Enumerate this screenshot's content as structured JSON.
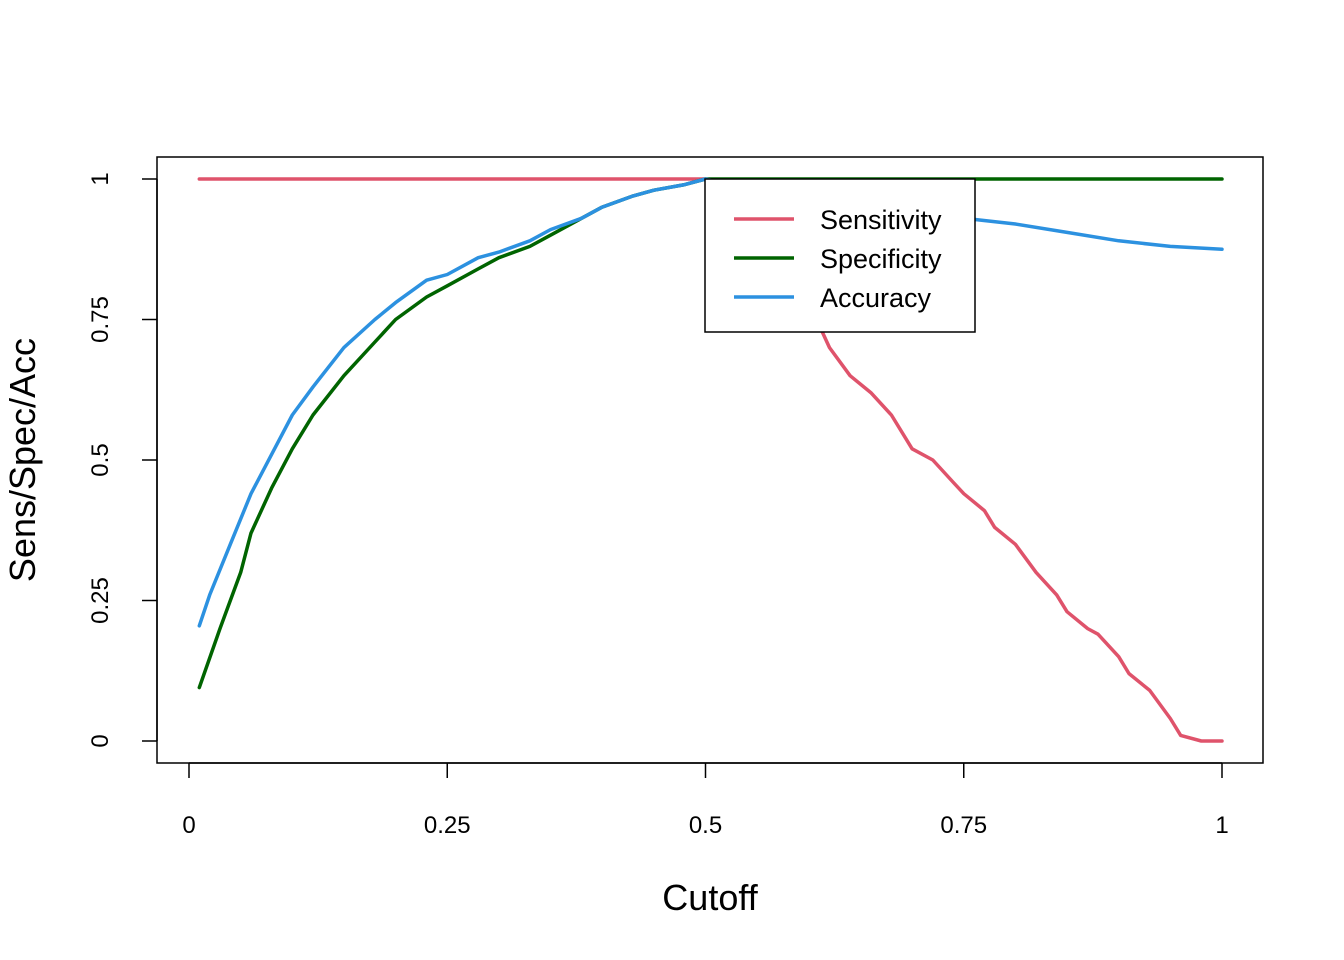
{
  "chart_data": {
    "type": "line",
    "title": "",
    "xlabel": "Cutoff",
    "ylabel": "Sens/Spec/Acc",
    "xlim": [
      0,
      1
    ],
    "ylim": [
      0,
      1
    ],
    "xticks": [
      0,
      0.25,
      0.5,
      0.75,
      1
    ],
    "xtick_labels": [
      "0",
      "0.25",
      "0.5",
      "0.75",
      "1"
    ],
    "yticks": [
      0,
      0.25,
      0.5,
      0.75,
      1
    ],
    "ytick_labels": [
      "0",
      "0.25",
      "0.5",
      "0.75",
      "1"
    ],
    "grid": false,
    "legend_position": "top-center-right",
    "series": [
      {
        "name": "Sensitivity",
        "color": "#DF536B",
        "x": [
          0.01,
          0.1,
          0.2,
          0.3,
          0.4,
          0.5,
          0.55,
          0.58,
          0.6,
          0.62,
          0.64,
          0.66,
          0.68,
          0.7,
          0.72,
          0.74,
          0.75,
          0.77,
          0.78,
          0.8,
          0.82,
          0.84,
          0.85,
          0.87,
          0.88,
          0.9,
          0.91,
          0.93,
          0.95,
          0.96,
          0.98,
          1.0
        ],
        "y": [
          1,
          1,
          1,
          1,
          1,
          1,
          0.92,
          0.82,
          0.78,
          0.7,
          0.65,
          0.62,
          0.58,
          0.52,
          0.5,
          0.46,
          0.44,
          0.41,
          0.38,
          0.35,
          0.3,
          0.26,
          0.23,
          0.2,
          0.19,
          0.15,
          0.12,
          0.09,
          0.04,
          0.01,
          0.0,
          0.0
        ]
      },
      {
        "name": "Specificity",
        "color": "#006400",
        "x": [
          0.01,
          0.03,
          0.05,
          0.06,
          0.08,
          0.1,
          0.12,
          0.15,
          0.18,
          0.2,
          0.23,
          0.25,
          0.28,
          0.3,
          0.33,
          0.35,
          0.38,
          0.4,
          0.43,
          0.45,
          0.48,
          0.5,
          0.6,
          0.7,
          0.8,
          0.9,
          1.0
        ],
        "y": [
          0.095,
          0.2,
          0.3,
          0.37,
          0.45,
          0.52,
          0.58,
          0.65,
          0.71,
          0.75,
          0.79,
          0.81,
          0.84,
          0.86,
          0.88,
          0.9,
          0.93,
          0.95,
          0.97,
          0.98,
          0.99,
          1,
          1,
          1,
          1,
          1,
          1
        ]
      },
      {
        "name": "Accuracy",
        "color": "#2C91E0",
        "x": [
          0.01,
          0.02,
          0.04,
          0.06,
          0.08,
          0.1,
          0.12,
          0.15,
          0.18,
          0.2,
          0.23,
          0.25,
          0.28,
          0.3,
          0.33,
          0.35,
          0.38,
          0.4,
          0.43,
          0.45,
          0.48,
          0.5,
          0.55,
          0.6,
          0.65,
          0.7,
          0.75,
          0.8,
          0.85,
          0.9,
          0.95,
          1.0
        ],
        "y": [
          0.205,
          0.26,
          0.35,
          0.44,
          0.51,
          0.58,
          0.63,
          0.7,
          0.75,
          0.78,
          0.82,
          0.83,
          0.86,
          0.87,
          0.89,
          0.91,
          0.93,
          0.95,
          0.97,
          0.98,
          0.99,
          1,
          0.98,
          0.97,
          0.955,
          0.94,
          0.93,
          0.92,
          0.905,
          0.89,
          0.88,
          0.875
        ]
      }
    ]
  }
}
